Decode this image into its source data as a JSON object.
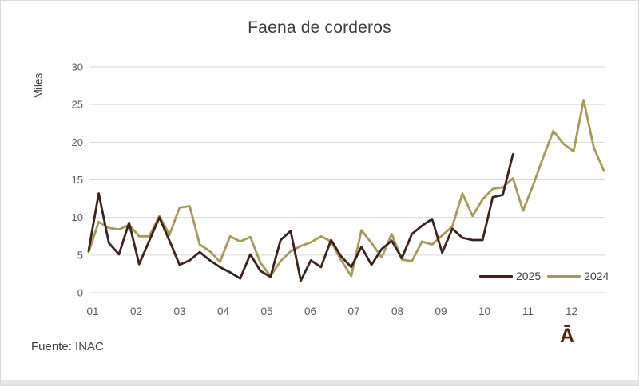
{
  "chart": {
    "title": "Faena de corderos",
    "ylabel": "Miles"
  },
  "chart_data": {
    "type": "line",
    "title": "Faena de corderos",
    "ylabel": "Miles",
    "x_unit": "week_of_year",
    "x_tick_labels": [
      "01",
      "02",
      "03",
      "04",
      "05",
      "06",
      "07",
      "08",
      "09",
      "10",
      "11",
      "12"
    ],
    "ylim": [
      0,
      30
    ],
    "yticks": [
      0,
      5,
      10,
      15,
      20,
      25,
      30
    ],
    "grid": true,
    "legend_position": "inside-bottom-right",
    "gridline_color": "#d9d9d9",
    "tick_label_color": "#595959",
    "series": [
      {
        "name": "2025",
        "color": "#3a241d",
        "values": [
          5.6,
          13.2,
          6.6,
          5.1,
          9.3,
          3.8,
          6.9,
          10.0,
          6.9,
          3.7,
          4.3,
          5.4,
          4.3,
          3.4,
          2.7,
          1.9,
          5.1,
          2.9,
          2.1,
          7.0,
          8.2,
          1.6,
          4.3,
          3.4,
          7.0,
          4.8,
          3.4,
          6.1,
          3.7,
          5.8,
          6.9,
          4.6,
          7.8,
          8.9,
          9.8,
          5.3,
          8.5,
          7.3,
          7.0,
          7.0,
          12.7,
          13.0,
          18.4
        ]
      },
      {
        "name": "2024",
        "color": "#a49b5b",
        "values": [
          5.4,
          9.4,
          8.6,
          8.4,
          9.0,
          7.5,
          7.5,
          10.2,
          7.7,
          11.3,
          11.5,
          6.4,
          5.5,
          4.1,
          7.5,
          6.8,
          7.4,
          4.0,
          2.2,
          4.2,
          5.5,
          6.2,
          6.7,
          7.5,
          6.8,
          4.3,
          2.2,
          8.3,
          6.6,
          4.7,
          7.8,
          4.4,
          4.2,
          6.8,
          6.4,
          7.6,
          8.8,
          13.2,
          10.2,
          12.4,
          13.8,
          14.0,
          15.2,
          10.9,
          14.3,
          18.0,
          21.5,
          19.8,
          18.8,
          25.6,
          19.3,
          16.2
        ]
      }
    ]
  },
  "legend": {
    "labels": [
      "2025",
      "2024"
    ]
  },
  "footer": {
    "source": "Fuente: INAC",
    "watermark": "Ā"
  }
}
